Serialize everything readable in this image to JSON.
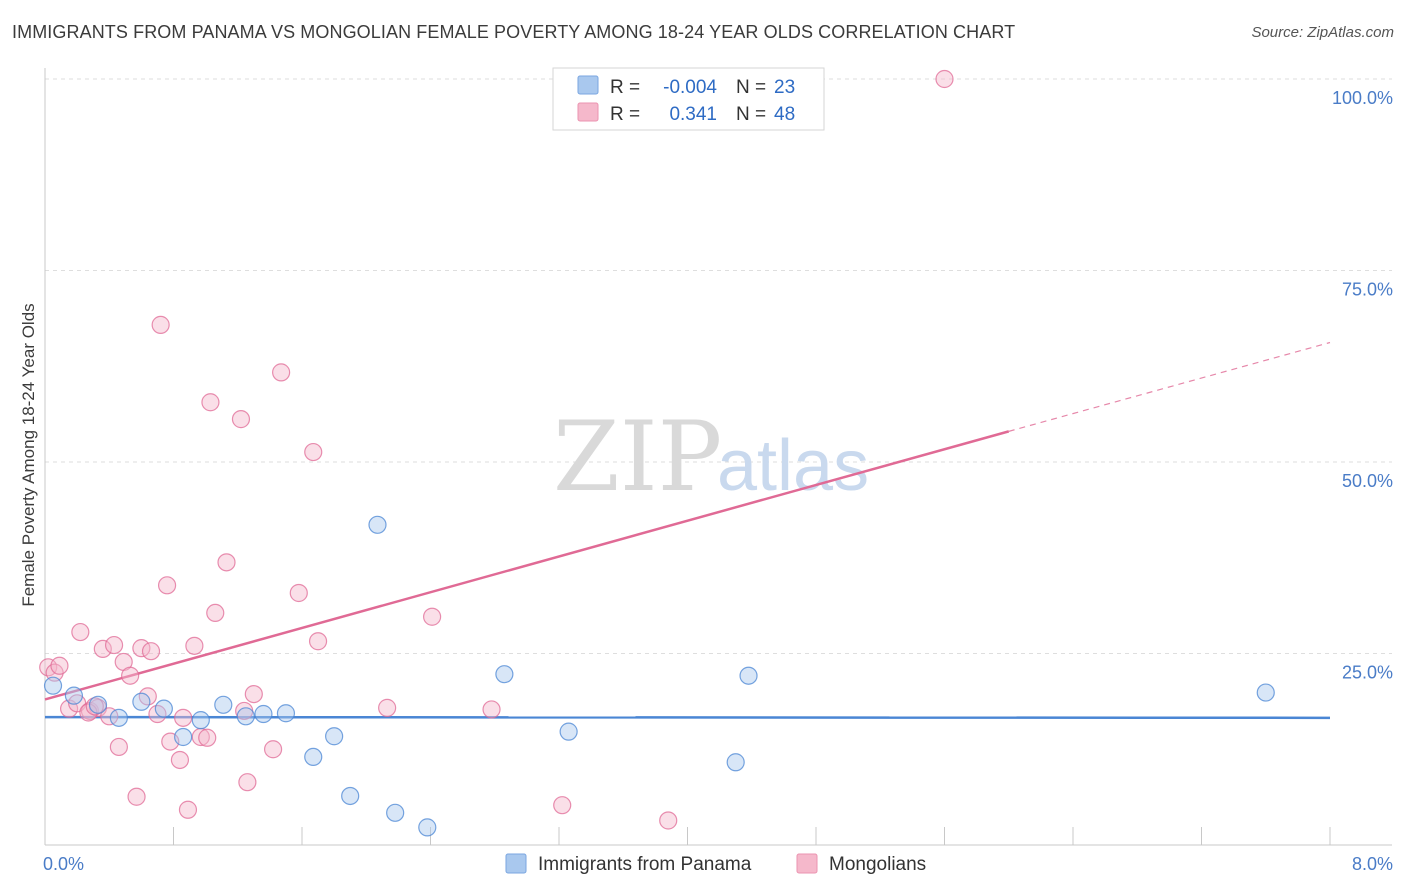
{
  "title": "IMMIGRANTS FROM PANAMA VS MONGOLIAN FEMALE POVERTY AMONG 18-24 YEAR OLDS CORRELATION CHART",
  "source": "Source: ZipAtlas.com",
  "watermark": {
    "zip": "ZIP",
    "atlas": "atlas"
  },
  "colors": {
    "blue": "#4a86d4",
    "blue_fill": "#a9c8ee",
    "pink": "#e06a95",
    "pink_fill": "#f5b8cb",
    "tick_blue": "#4a7cc7"
  },
  "legend": {
    "rows": [
      {
        "series": "blue",
        "r_label": "R =",
        "r_value": "-0.004",
        "n_label": "N =",
        "n_value": "23"
      },
      {
        "series": "pink",
        "r_label": "R =",
        "r_value": "0.341",
        "n_label": "N =",
        "n_value": "48"
      }
    ]
  },
  "bottom_legend": [
    {
      "series": "blue",
      "label": "Immigrants from Panama"
    },
    {
      "series": "pink",
      "label": "Mongolians"
    }
  ],
  "chart_data": {
    "type": "scatter",
    "title": "IMMIGRANTS FROM PANAMA VS MONGOLIAN FEMALE POVERTY AMONG 18-24 YEAR OLDS CORRELATION CHART",
    "xlabel": "",
    "ylabel": "Female Poverty Among 18-24 Year Olds",
    "xlim": [
      0,
      8.0
    ],
    "ylim": [
      0,
      102
    ],
    "x_tick_labels": [
      "0.0%",
      "8.0%"
    ],
    "y_ticks": [
      25,
      50,
      75,
      100
    ],
    "y_tick_labels": [
      "25.0%",
      "50.0%",
      "75.0%",
      "100.0%"
    ],
    "grid": true,
    "series": [
      {
        "name": "Immigrants from Panama",
        "color": "blue",
        "points": [
          [
            0.05,
            20.8
          ],
          [
            0.18,
            19.5
          ],
          [
            0.33,
            18.3
          ],
          [
            0.46,
            16.6
          ],
          [
            0.6,
            18.7
          ],
          [
            0.74,
            17.8
          ],
          [
            0.86,
            14.1
          ],
          [
            0.97,
            16.3
          ],
          [
            1.11,
            18.3
          ],
          [
            1.25,
            16.8
          ],
          [
            1.36,
            17.1
          ],
          [
            1.5,
            17.2
          ],
          [
            1.67,
            11.5
          ],
          [
            1.8,
            14.2
          ],
          [
            1.9,
            6.4
          ],
          [
            2.07,
            41.8
          ],
          [
            2.18,
            4.2
          ],
          [
            2.38,
            2.3
          ],
          [
            2.86,
            22.3
          ],
          [
            3.26,
            14.8
          ],
          [
            4.3,
            10.8
          ],
          [
            4.38,
            22.1
          ],
          [
            7.6,
            19.9
          ]
        ],
        "trend": {
          "x0": 0.0,
          "y0": 16.7,
          "x1": 8.0,
          "y1": 16.6
        }
      },
      {
        "name": "Mongolians",
        "color": "pink",
        "points": [
          [
            0.02,
            23.2
          ],
          [
            0.06,
            22.5
          ],
          [
            0.09,
            23.4
          ],
          [
            0.15,
            17.8
          ],
          [
            0.2,
            18.5
          ],
          [
            0.22,
            27.8
          ],
          [
            0.28,
            17.5
          ],
          [
            0.33,
            17.9
          ],
          [
            0.36,
            25.6
          ],
          [
            0.4,
            16.8
          ],
          [
            0.43,
            26.1
          ],
          [
            0.46,
            12.8
          ],
          [
            0.49,
            23.9
          ],
          [
            0.53,
            22.1
          ],
          [
            0.57,
            6.3
          ],
          [
            0.6,
            25.7
          ],
          [
            0.64,
            19.4
          ],
          [
            0.66,
            25.3
          ],
          [
            0.7,
            17.1
          ],
          [
            0.72,
            67.9
          ],
          [
            0.76,
            33.9
          ],
          [
            0.78,
            13.5
          ],
          [
            0.84,
            11.1
          ],
          [
            0.86,
            16.6
          ],
          [
            0.89,
            4.6
          ],
          [
            0.93,
            26.0
          ],
          [
            0.97,
            14.1
          ],
          [
            1.01,
            14.0
          ],
          [
            1.03,
            57.8
          ],
          [
            1.06,
            30.3
          ],
          [
            1.13,
            36.9
          ],
          [
            1.22,
            55.6
          ],
          [
            1.24,
            17.5
          ],
          [
            1.26,
            8.2
          ],
          [
            1.3,
            19.7
          ],
          [
            1.42,
            12.5
          ],
          [
            1.47,
            61.7
          ],
          [
            1.58,
            32.9
          ],
          [
            1.67,
            51.3
          ],
          [
            1.7,
            26.6
          ],
          [
            2.13,
            17.9
          ],
          [
            2.41,
            29.8
          ],
          [
            2.78,
            17.7
          ],
          [
            3.22,
            5.2
          ],
          [
            3.88,
            3.2
          ],
          [
            5.6,
            100.0
          ],
          [
            0.27,
            17.3
          ],
          [
            0.31,
            18.1
          ]
        ],
        "trend": {
          "x0": 0.0,
          "y0": 19.0,
          "x1": 6.0,
          "y1": 54.0
        },
        "trend_dashed_extension": {
          "x0": 6.0,
          "y0": 54.0,
          "x1": 8.0,
          "y1": 65.6
        }
      }
    ]
  }
}
